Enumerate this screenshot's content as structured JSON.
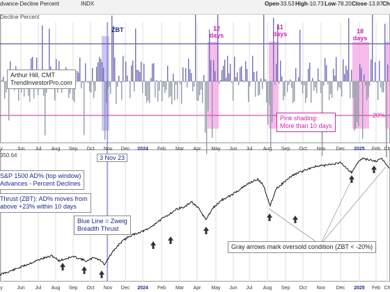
{
  "header": {
    "title": "dvance-Decline Percent",
    "symbol": "INDX",
    "open_label": "Open",
    "open_value": "-33.53",
    "high_label": "High",
    "high_value": "-10.73",
    "low_label": "Low",
    "low_value": "-78.20",
    "close_label": "Close",
    "close_value": "-13.87",
    "chg_label": "Ch"
  },
  "top_panel": {
    "sublabel": "Decline Percent",
    "author_line1": "Arthur Hill, CMT",
    "author_line2": "TrendInvestorPro.com",
    "zbt_label": "ZBT",
    "pink_labels": [
      {
        "l1": "12",
        "l2": "days"
      },
      {
        "l1": "11",
        "l2": "days"
      },
      {
        "l1": "18",
        "l2": "days"
      }
    ],
    "pink_note_line1": "Pink shading:",
    "pink_note_line2": "More than 10 days",
    "minus20_label": "-20%"
  },
  "bottom_panel": {
    "price_label": "350.64",
    "date_label": "3 Nov 23",
    "legend_line1": "S&P 1500 AD% (top window)",
    "legend_line2": "Advances - Percent Declines",
    "zbt_line1": "Thrust (ZBT): AD% moves from",
    "zbt_line2": "above +23% within 10 days",
    "blue_line1": "Blue Line = Zweig",
    "blue_line2": "Breadth Thrust",
    "gray_note": "Gray arrows mark oversold condition (ZBT < -20%)"
  },
  "chart_data": {
    "type": "bar",
    "x_tick_labels": [
      "y",
      "Jun",
      "Jul",
      "Aug",
      "Sep",
      "Oct",
      "Nov",
      "Dec",
      "2024",
      "Feb",
      "Mar",
      "Apr",
      "May",
      "Jun",
      "Jul",
      "Aug",
      "Sep",
      "Oct",
      "Nov",
      "Dec",
      "2025",
      "Feb",
      "Ch"
    ],
    "top": {
      "series": "AD%",
      "reference_lines": [
        23,
        0,
        -20
      ],
      "reference_line_label": "-20%",
      "ylim": [
        -70,
        80
      ],
      "pink_shading_periods": [
        "Apr-May 2024",
        "Aug 2024",
        "Dec 2024-Jan 2025",
        "Feb 2025"
      ],
      "zbt_date": "3 Nov 23"
    },
    "bottom": {
      "series": "S&P 1500",
      "last_value": 350.64,
      "oversold_arrows": [
        "Aug 2023",
        "Oct 2023",
        "Oct 2023",
        "Dec 2023",
        "Feb 2024",
        "Apr 2024",
        "Aug 2024",
        "Sep 2024",
        "Dec 2024",
        "Jan 2025"
      ]
    }
  }
}
